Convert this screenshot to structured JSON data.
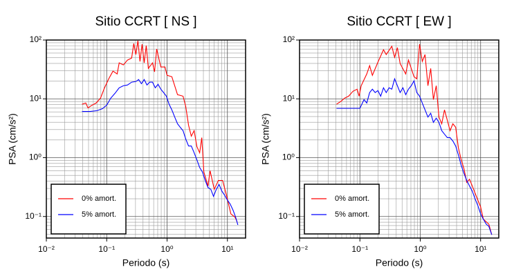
{
  "chart_data": [
    {
      "type": "line",
      "title": "Sitio CCRT [ NS ]",
      "x_label": "Periodo (s)",
      "y_label": "PSA (cm/s²)",
      "xlog": true,
      "ylog": true,
      "grid": true,
      "legend": "lower left",
      "xlim": [
        0.01,
        20
      ],
      "ylim": [
        0.043,
        100
      ],
      "xticks": [
        {
          "value": 0.01,
          "label": "10⁻²"
        },
        {
          "value": 0.1,
          "label": "10⁻¹"
        },
        {
          "value": 1,
          "label": "10⁰"
        },
        {
          "value": 10,
          "label": "10¹"
        }
      ],
      "yticks": [
        {
          "value": 0.1,
          "label": "10⁻¹"
        },
        {
          "value": 1,
          "label": "10⁰"
        },
        {
          "value": 10,
          "label": "10¹"
        },
        {
          "value": 100,
          "label": "10²"
        }
      ],
      "series": [
        {
          "name": "0% amort.",
          "color": "#ff0000",
          "x": [
            0.039,
            0.045,
            0.049,
            0.057,
            0.067,
            0.079,
            0.092,
            0.108,
            0.127,
            0.149,
            0.161,
            0.189,
            0.221,
            0.259,
            0.281,
            0.304,
            0.329,
            0.356,
            0.386,
            0.418,
            0.452,
            0.49,
            0.574,
            0.621,
            0.673,
            0.788,
            0.924,
            1.0,
            1.2,
            1.49,
            1.84,
            2.04,
            2.27,
            2.52,
            2.81,
            3.12,
            3.47,
            3.76,
            4.07,
            4.77,
            5.16,
            6.05,
            7.09,
            8.32,
            9.75,
            11.4,
            13.4,
            14.5
          ],
          "values": [
            8.1,
            8.5,
            7.0,
            7.8,
            8.5,
            10.3,
            15.4,
            21.9,
            29.6,
            26.5,
            40.9,
            37.7,
            45.6,
            49.4,
            87.3,
            56.6,
            97.3,
            43.2,
            84.9,
            40.9,
            80.5,
            32.9,
            40.9,
            28.8,
            70.3,
            34.8,
            34.8,
            25.1,
            23.8,
            11.8,
            11.1,
            7.4,
            3.57,
            2.32,
            2.88,
            1.54,
            1.21,
            2.19,
            0.57,
            0.33,
            0.6,
            0.29,
            0.41,
            0.41,
            0.22,
            0.111,
            0.097,
            0.081
          ]
        },
        {
          "name": "5% amort.",
          "color": "#0000ff",
          "x": [
            0.039,
            0.053,
            0.069,
            0.085,
            0.1,
            0.117,
            0.137,
            0.161,
            0.189,
            0.221,
            0.259,
            0.304,
            0.338,
            0.376,
            0.418,
            0.464,
            0.516,
            0.574,
            0.638,
            0.709,
            0.788,
            0.876,
            0.975,
            1.08,
            1.2,
            1.34,
            1.49,
            1.65,
            1.84,
            2.04,
            2.27,
            2.52,
            2.81,
            3.12,
            3.47,
            3.86,
            4.29,
            4.77,
            5.3,
            5.89,
            6.55,
            7.28,
            8.09,
            8.99,
            10,
            11.1,
            12.4,
            13.7,
            14.9
          ],
          "values": [
            6.1,
            6.1,
            6.3,
            6.8,
            7.8,
            10.3,
            12.4,
            15.4,
            16.7,
            17.2,
            19.2,
            19.7,
            21.3,
            18.1,
            21.3,
            17.2,
            19.2,
            19.2,
            15.4,
            17.7,
            14.6,
            12.8,
            11.1,
            8.1,
            6.5,
            4.9,
            3.77,
            3.29,
            2.88,
            2.08,
            1.58,
            1.58,
            1.21,
            0.92,
            0.68,
            0.57,
            0.41,
            0.31,
            0.29,
            0.22,
            0.29,
            0.35,
            0.27,
            0.23,
            0.19,
            0.163,
            0.128,
            0.097,
            0.072
          ]
        }
      ]
    },
    {
      "type": "line",
      "title": "Sitio CCRT [ EW ]",
      "x_label": "Periodo (s)",
      "y_label": "PSA (cm/s²)",
      "xlog": true,
      "ylog": true,
      "grid": true,
      "legend": "lower left",
      "xlim": [
        0.01,
        20
      ],
      "ylim": [
        0.043,
        100
      ],
      "xticks": [
        {
          "value": 0.01,
          "label": "10⁻²"
        },
        {
          "value": 0.1,
          "label": "10⁻¹"
        },
        {
          "value": 1,
          "label": "10⁰"
        },
        {
          "value": 10,
          "label": "10¹"
        }
      ],
      "yticks": [
        {
          "value": 0.1,
          "label": "10⁻¹"
        },
        {
          "value": 1,
          "label": "10⁰"
        },
        {
          "value": 10,
          "label": "10¹"
        },
        {
          "value": 100,
          "label": "10²"
        }
      ],
      "series": [
        {
          "name": "0% amort.",
          "color": "#ff0000",
          "x": [
            0.041,
            0.048,
            0.056,
            0.065,
            0.077,
            0.09,
            0.097,
            0.105,
            0.13,
            0.145,
            0.161,
            0.199,
            0.246,
            0.273,
            0.338,
            0.376,
            0.418,
            0.464,
            0.574,
            0.638,
            0.788,
            0.876,
            0.975,
            1.08,
            1.2,
            1.34,
            1.49,
            1.65,
            1.84,
            2.04,
            2.27,
            2.52,
            2.81,
            3.12,
            3.47,
            3.86,
            4.29,
            4.77,
            5.3,
            5.89,
            6.55,
            7.28,
            8.99,
            10,
            11.1,
            13.7,
            15.3
          ],
          "values": [
            8.1,
            9.0,
            10.3,
            11.1,
            13.5,
            14.6,
            11.1,
            16.7,
            26.5,
            36.7,
            25.1,
            42.1,
            68.4,
            56.6,
            78.3,
            50.8,
            74.3,
            39.8,
            26.5,
            45.6,
            23.8,
            21.9,
            84.9,
            43.2,
            56.6,
            16.7,
            32.9,
            9.7,
            16.7,
            4.9,
            3.77,
            6.5,
            4.3,
            2.88,
            3.77,
            3.29,
            1.46,
            0.92,
            0.65,
            0.38,
            0.43,
            0.33,
            0.19,
            0.146,
            0.09,
            0.074,
            0.049
          ]
        },
        {
          "name": "5% amort.",
          "color": "#0000ff",
          "x": [
            0.041,
            0.1,
            0.117,
            0.13,
            0.145,
            0.161,
            0.179,
            0.199,
            0.221,
            0.246,
            0.273,
            0.304,
            0.338,
            0.376,
            0.418,
            0.464,
            0.516,
            0.574,
            0.638,
            0.709,
            0.788,
            0.876,
            0.975,
            1.08,
            1.2,
            1.34,
            1.49,
            1.65,
            1.84,
            2.04,
            2.27,
            2.52,
            2.81,
            3.12,
            3.47,
            3.86,
            4.29,
            4.77,
            5.3,
            5.89,
            6.55,
            7.28,
            8.09,
            8.99,
            10,
            11.1,
            12.4,
            13.7,
            15.3
          ],
          "values": [
            6.9,
            6.9,
            9.7,
            8.5,
            12.8,
            14.6,
            12.8,
            13.8,
            11.1,
            15.4,
            12.8,
            15.4,
            14.6,
            21.9,
            16.7,
            12.8,
            15.4,
            11.8,
            14.6,
            16.7,
            20.2,
            12.8,
            11.1,
            8.5,
            6.5,
            4.9,
            5.7,
            3.98,
            4.7,
            3.98,
            2.88,
            2.51,
            2.19,
            2.19,
            1.92,
            1.58,
            1.11,
            0.74,
            0.54,
            0.41,
            0.33,
            0.27,
            0.2,
            0.154,
            0.111,
            0.09,
            0.074,
            0.068,
            0.049
          ]
        }
      ]
    }
  ]
}
